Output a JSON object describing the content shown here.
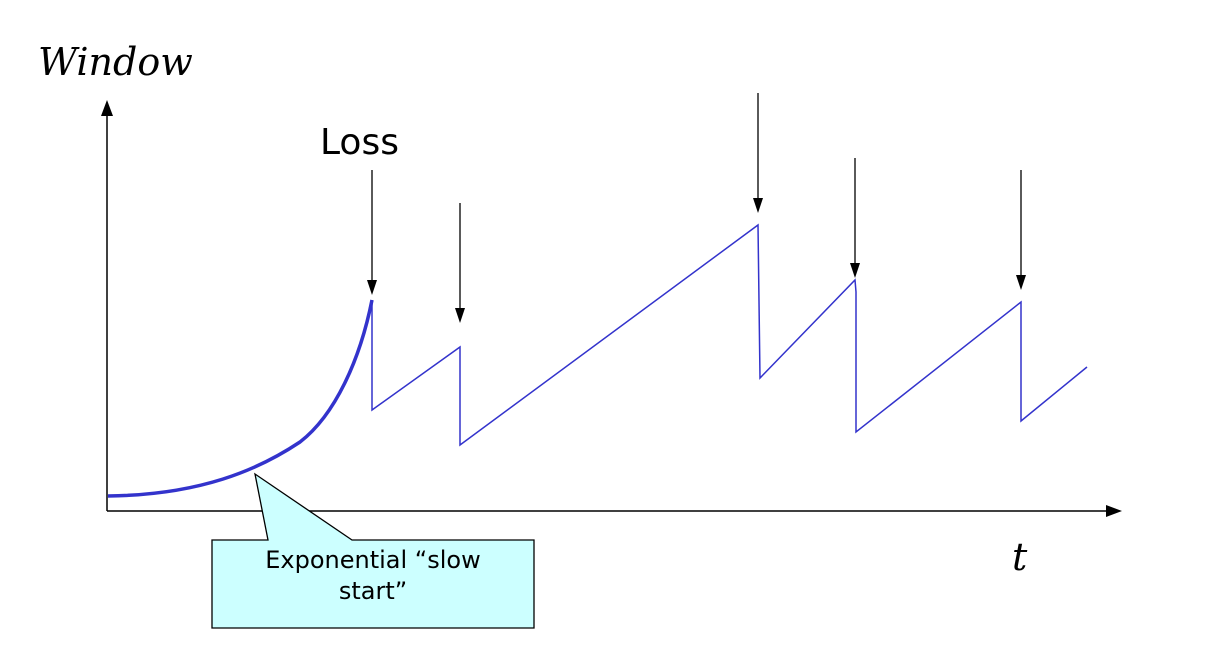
{
  "diagram": {
    "y_axis_label": "Window",
    "x_axis_label": "t",
    "loss_label": "Loss",
    "callout": {
      "line1": "Exponential “slow",
      "line2": "start”",
      "fill_color": "#ccffff"
    },
    "curve_color": "#3333cc",
    "loss_event_count": 5
  }
}
